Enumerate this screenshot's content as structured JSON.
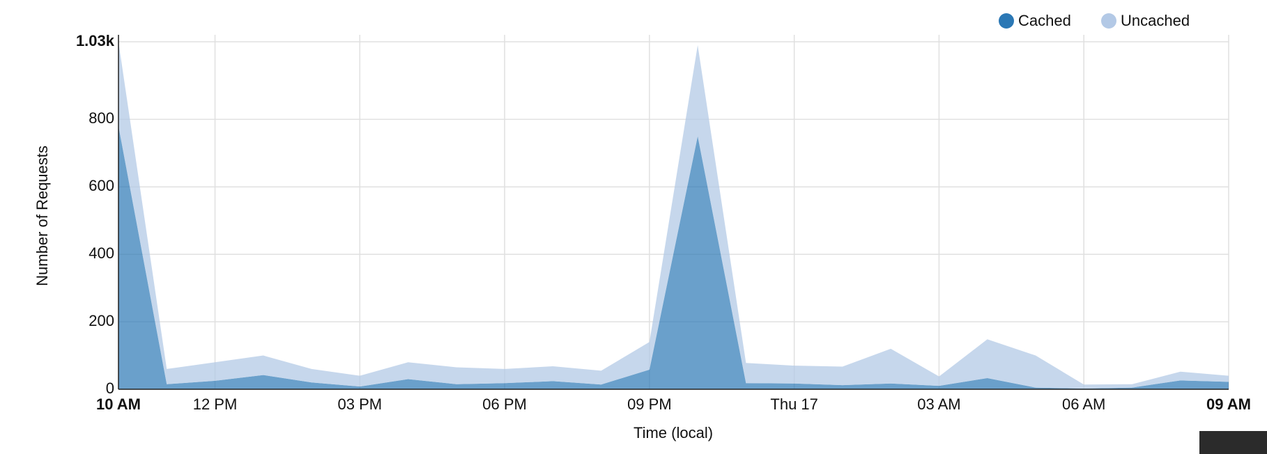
{
  "chart_data": {
    "type": "stacked-area",
    "y_label": "Number of Requests",
    "x_label": "Time (local)",
    "x": [
      0,
      1,
      2,
      3,
      4,
      5,
      6,
      7,
      8,
      9,
      10,
      11,
      12,
      13,
      14,
      15,
      16,
      17,
      18,
      19,
      20,
      21,
      22,
      23
    ],
    "xlim": [
      0,
      23
    ],
    "xticks": [
      {
        "value": 0,
        "label": "10 AM"
      },
      {
        "value": 2,
        "label": "12 PM"
      },
      {
        "value": 5,
        "label": "03 PM"
      },
      {
        "value": 8,
        "label": "06 PM"
      },
      {
        "value": 11,
        "label": "09 PM"
      },
      {
        "value": 14,
        "label": "Thu 17"
      },
      {
        "value": 17,
        "label": "03 AM"
      },
      {
        "value": 20,
        "label": "06 AM"
      },
      {
        "value": 23,
        "label": "09 AM"
      }
    ],
    "ylim": [
      0,
      1030
    ],
    "yticks": [
      0,
      200,
      400,
      600,
      800,
      {
        "value": 1030,
        "label": "1.03k"
      }
    ],
    "grid": true,
    "legend": "top-right",
    "series": [
      {
        "name": "Cached",
        "color": "#2b78b5",
        "values": [
          780,
          15,
          25,
          42,
          20,
          8,
          30,
          15,
          18,
          24,
          14,
          58,
          750,
          18,
          17,
          12,
          17,
          10,
          33,
          5,
          2,
          5,
          26,
          22
        ]
      },
      {
        "name": "Uncached",
        "color": "#b3c9e6",
        "values": [
          250,
          45,
          55,
          58,
          40,
          32,
          50,
          50,
          42,
          44,
          41,
          82,
          270,
          60,
          53,
          55,
          103,
          28,
          115,
          95,
          12,
          10,
          26,
          18
        ]
      }
    ]
  }
}
